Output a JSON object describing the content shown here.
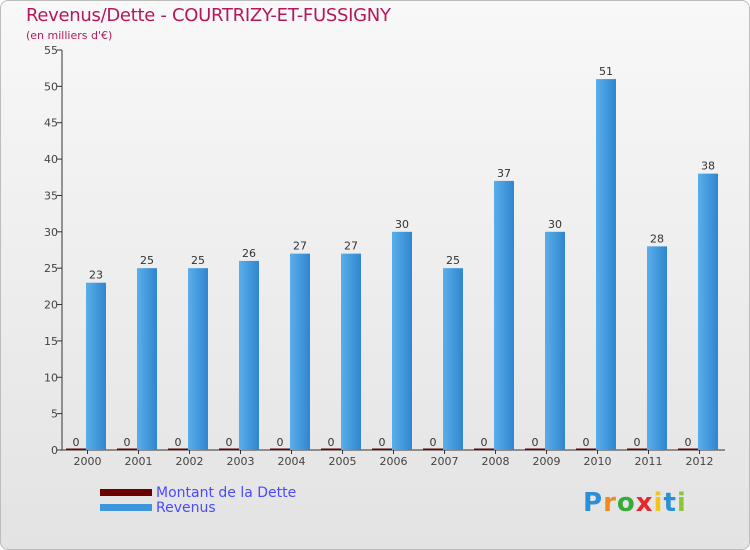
{
  "title": "Revenus/Dette - COURTRIZY-ET-FUSSIGNY",
  "subtitle": "(en milliers d'€)",
  "logo": {
    "text": "Proxiti",
    "letters": [
      "P",
      "r",
      "o",
      "x",
      "i",
      "t",
      "i"
    ],
    "colors": [
      "#2a8fd6",
      "#f08a1c",
      "#3aa935",
      "#e8262d",
      "#f0c419",
      "#2a8fd6",
      "#8cc63f"
    ]
  },
  "chart_data": {
    "type": "bar",
    "title": "Revenus/Dette - COURTRIZY-ET-FUSSIGNY",
    "ylabel": "(en milliers d'€)",
    "xlabel": "",
    "ylim": [
      0,
      55
    ],
    "yticks": [
      0,
      5,
      10,
      15,
      20,
      25,
      30,
      35,
      40,
      45,
      50,
      55
    ],
    "grid": false,
    "legend_position": "bottom-left",
    "categories": [
      "2000",
      "2001",
      "2002",
      "2003",
      "2004",
      "2005",
      "2006",
      "2007",
      "2008",
      "2009",
      "2010",
      "2011",
      "2012"
    ],
    "series": [
      {
        "name": "Montant de la Dette",
        "color": "#6b0000",
        "values": [
          0,
          0,
          0,
          0,
          0,
          0,
          0,
          0,
          0,
          0,
          0,
          0,
          0
        ]
      },
      {
        "name": "Revenus",
        "color": "#3d96dc",
        "values": [
          23,
          25,
          25,
          26,
          27,
          27,
          30,
          25,
          37,
          30,
          51,
          28,
          38
        ]
      }
    ]
  }
}
